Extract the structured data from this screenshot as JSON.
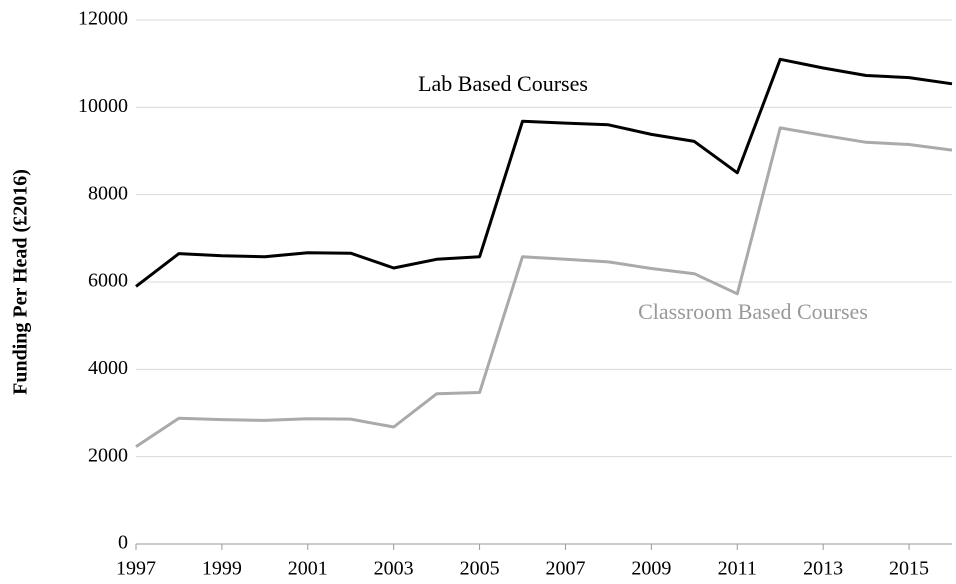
{
  "chart_data": {
    "type": "line",
    "y_label": "Funding Per Head (£2016)",
    "x": [
      1997,
      1998,
      1999,
      2000,
      2001,
      2002,
      2003,
      2004,
      2005,
      2006,
      2007,
      2008,
      2009,
      2010,
      2011,
      2012,
      2013,
      2014,
      2015,
      2016
    ],
    "series": [
      {
        "name": "Lab Based Courses",
        "color": "#000000",
        "values": [
          5900,
          6650,
          6600,
          6580,
          6670,
          6660,
          6320,
          6520,
          6580,
          9680,
          9640,
          9600,
          9380,
          9220,
          8500,
          11100,
          10900,
          10730,
          10680,
          10540
        ]
      },
      {
        "name": "Classroom Based Courses",
        "color": "#aaaaaa",
        "values": [
          2230,
          2880,
          2850,
          2830,
          2870,
          2860,
          2680,
          3440,
          3470,
          6580,
          6520,
          6460,
          6310,
          6190,
          5730,
          9530,
          9360,
          9200,
          9150,
          9020
        ]
      }
    ],
    "xlim": [
      1997,
      2016
    ],
    "xticks": [
      1997,
      1999,
      2001,
      2003,
      2005,
      2007,
      2009,
      2011,
      2013,
      2015
    ],
    "ylim": [
      0,
      12000
    ],
    "yticks": [
      0,
      2000,
      4000,
      6000,
      8000,
      10000,
      12000
    ],
    "grid": true
  }
}
